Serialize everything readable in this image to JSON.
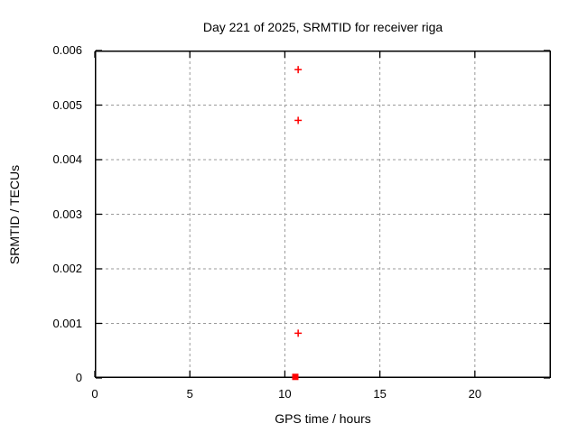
{
  "chart_data": {
    "type": "scatter",
    "title": "Day 221 of 2025, SRMTID for receiver riga",
    "xlabel": "GPS time / hours",
    "ylabel": "SRMTID / TECUs",
    "xlim": [
      0,
      24
    ],
    "ylim": [
      0,
      0.006
    ],
    "xticks": [
      {
        "value": 0,
        "label": "0"
      },
      {
        "value": 5,
        "label": "5"
      },
      {
        "value": 10,
        "label": "10"
      },
      {
        "value": 15,
        "label": "15"
      },
      {
        "value": 20,
        "label": "20"
      }
    ],
    "yticks": [
      {
        "value": 0,
        "label": "0"
      },
      {
        "value": 0.001,
        "label": "0.001"
      },
      {
        "value": 0.002,
        "label": "0.002"
      },
      {
        "value": 0.003,
        "label": "0.003"
      },
      {
        "value": 0.004,
        "label": "0.004"
      },
      {
        "value": 0.005,
        "label": "0.005"
      },
      {
        "value": 0.006,
        "label": "0.006"
      }
    ],
    "grid": {
      "visible": true,
      "line_style": "dashed",
      "color": "#999999"
    },
    "legend_position": "none",
    "axis_color": "#000000",
    "background_color": "#ffffff",
    "series": [
      {
        "name": "srmtid-plus-points",
        "marker": "plus",
        "color": "#ff0000",
        "points": [
          {
            "x": 10.7,
            "y": 0.00565
          },
          {
            "x": 10.7,
            "y": 0.00472
          },
          {
            "x": 10.7,
            "y": 0.00082
          }
        ]
      },
      {
        "name": "srmtid-square-point",
        "marker": "filled-square",
        "color": "#ff0000",
        "points": [
          {
            "x": 10.55,
            "y": 2e-05
          }
        ]
      }
    ]
  }
}
